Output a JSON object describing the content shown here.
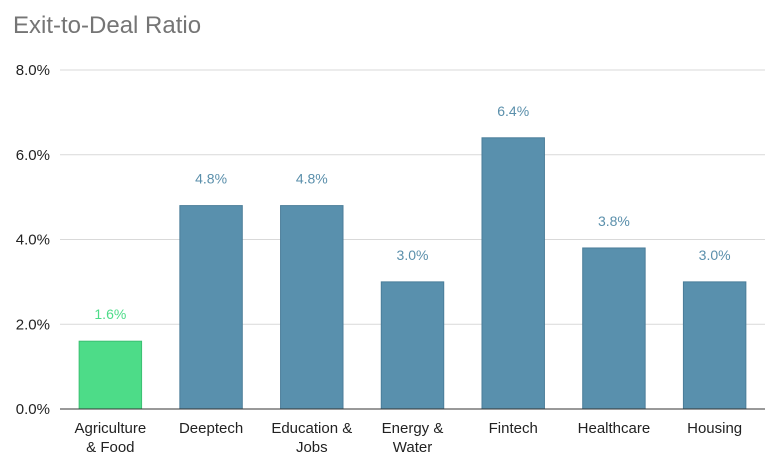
{
  "chart_data": {
    "type": "bar",
    "title": "Exit-to-Deal Ratio",
    "xlabel": "",
    "ylabel": "",
    "categories": [
      [
        "Agriculture",
        "& Food"
      ],
      [
        "Deeptech"
      ],
      [
        "Education &",
        "Jobs"
      ],
      [
        "Energy &",
        "Water"
      ],
      [
        "Fintech"
      ],
      [
        "Healthcare"
      ],
      [
        "Housing"
      ]
    ],
    "values": [
      1.6,
      4.8,
      4.8,
      3.0,
      6.4,
      3.8,
      3.0
    ],
    "data_labels": [
      "1.6%",
      "4.8%",
      "4.8%",
      "3.0%",
      "6.4%",
      "3.8%",
      "3.0%"
    ],
    "ylim": [
      0,
      8
    ],
    "yticks": [
      0,
      2,
      4,
      6,
      8
    ],
    "ytick_labels": [
      "0.0%",
      "2.0%",
      "4.0%",
      "6.0%",
      "8.0%"
    ],
    "grid": true,
    "legend": "none",
    "colors": {
      "highlight": "#4ddc88",
      "highlight_label": "#4ddc88",
      "default": "#5990ad",
      "default_label": "#5a8fab",
      "grid": "#d9d9d9",
      "axis": "#333333"
    },
    "highlight_index": 0
  }
}
